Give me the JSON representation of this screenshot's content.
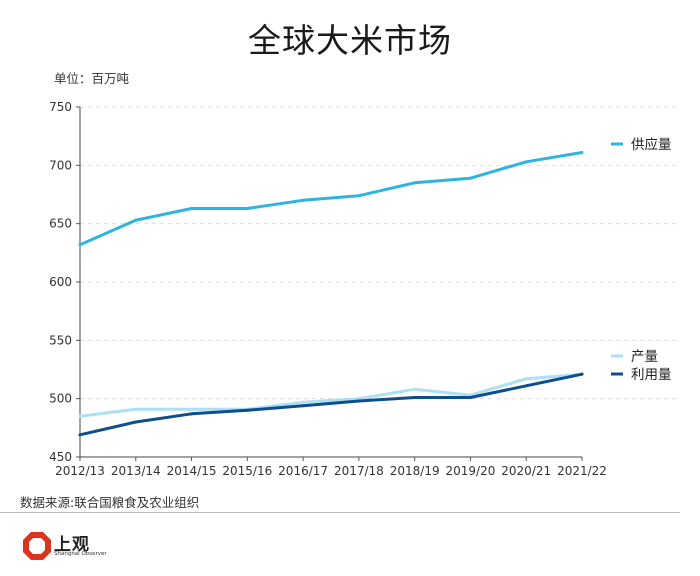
{
  "chart_data": {
    "type": "line",
    "title": "全球大米市场",
    "unit_label": "单位：百万吨",
    "categories": [
      "2012/13",
      "2013/14",
      "2014/15",
      "2015/16",
      "2016/17",
      "2017/18",
      "2018/19",
      "2019/20",
      "2020/21",
      "2021/22"
    ],
    "ylim": [
      450,
      750
    ],
    "yticks": [
      450,
      500,
      550,
      600,
      650,
      700,
      750
    ],
    "grid": true,
    "series": [
      {
        "name": "供应量",
        "color": "#2fb4e0",
        "values": [
          632,
          653,
          663,
          663,
          670,
          674,
          685,
          689,
          703,
          711
        ]
      },
      {
        "name": "产量",
        "color": "#aee0f2",
        "values": [
          485,
          491,
          491,
          491,
          497,
          500,
          508,
          503,
          517,
          521
        ]
      },
      {
        "name": "利用量",
        "color": "#0d4f8c",
        "values": [
          469,
          480,
          487,
          490,
          494,
          498,
          501,
          501,
          511,
          521
        ]
      }
    ]
  },
  "source": "数据来源:联合国粮食及农业组织",
  "brand": {
    "name": "上观",
    "tagline": "Shanghai Observer",
    "color": "#d9341f"
  }
}
